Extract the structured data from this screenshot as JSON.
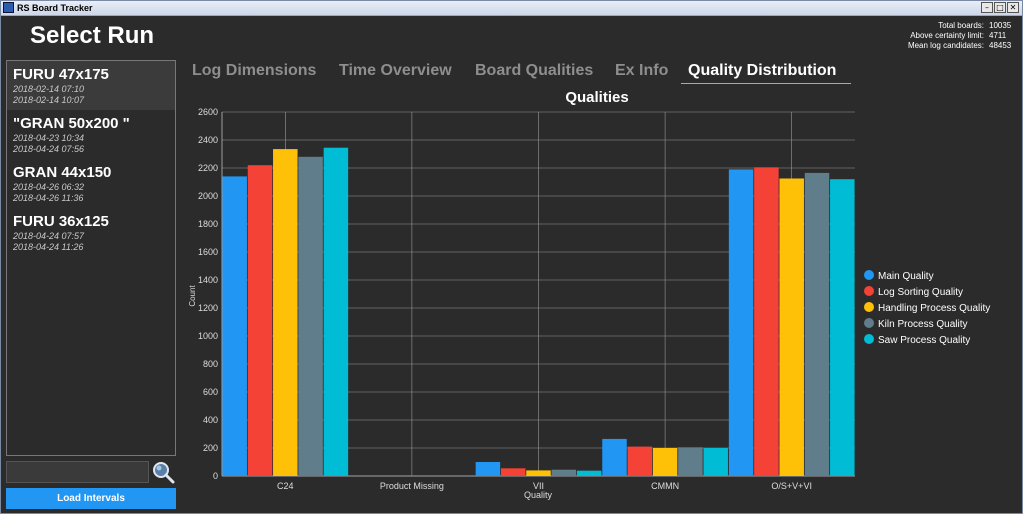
{
  "window": {
    "title": "RS Board Tracker"
  },
  "header": {
    "title": "Select Run"
  },
  "stats": [
    {
      "label": "Total boards:",
      "value": "10035"
    },
    {
      "label": "Above certainty limit:",
      "value": "4711"
    },
    {
      "label": "Mean log candidates:",
      "value": "48453"
    }
  ],
  "runs": [
    {
      "name": "FURU 47x175",
      "start": "2018-02-14 07:10",
      "end": "2018-02-14 10:07"
    },
    {
      "name": "\"GRAN 50x200 \"",
      "start": "2018-04-23 10:34",
      "end": "2018-04-24 07:56"
    },
    {
      "name": "GRAN 44x150",
      "start": "2018-04-26 06:32",
      "end": "2018-04-26 11:36"
    },
    {
      "name": "FURU 36x125",
      "start": "2018-04-24 07:57",
      "end": "2018-04-24 11:26"
    }
  ],
  "search": {
    "value": "",
    "icon": "search-icon"
  },
  "load_button": {
    "label": "Load Intervals"
  },
  "tabs": [
    {
      "label": "Log Dimensions"
    },
    {
      "label": "Time Overview"
    },
    {
      "label": "Board Qualities"
    },
    {
      "label": "Ex Info"
    },
    {
      "label": "Quality Distribution"
    }
  ],
  "active_tab": "Quality Distribution",
  "chart_data": {
    "type": "bar",
    "title": "Qualities",
    "xlabel": "Quality",
    "ylabel": "Count",
    "ylim": [
      0,
      2600
    ],
    "yticks": [
      0,
      200,
      400,
      600,
      800,
      1000,
      1200,
      1400,
      1600,
      1800,
      2000,
      2200,
      2400,
      2600
    ],
    "grid": true,
    "legend": "right",
    "categories": [
      "C24",
      "Product Missing",
      "VII",
      "CMMN",
      "O/S+V+VI"
    ],
    "series": [
      {
        "name": "Main Quality",
        "color": "#2196f3",
        "values": [
          2140,
          0,
          100,
          265,
          2190
        ]
      },
      {
        "name": "Log Sorting Quality",
        "color": "#f44336",
        "values": [
          2220,
          0,
          55,
          210,
          2205
        ]
      },
      {
        "name": "Handling Process Quality",
        "color": "#ffc107",
        "values": [
          2335,
          0,
          40,
          200,
          2125
        ]
      },
      {
        "name": "Kiln Process Quality",
        "color": "#607d8b",
        "values": [
          2280,
          0,
          45,
          205,
          2165
        ]
      },
      {
        "name": "Saw Process Quality",
        "color": "#00bcd4",
        "values": [
          2345,
          0,
          38,
          200,
          2120
        ]
      }
    ]
  }
}
